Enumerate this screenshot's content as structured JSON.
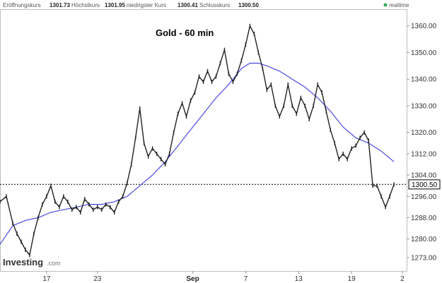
{
  "header": {
    "open_label": "Eröffnungskurs",
    "open_value": "1301.73",
    "high_label": "Höchstkurs",
    "high_value": "1301.95",
    "low_label": "niedrigster Kurs",
    "low_value": "1300.41",
    "close_label": "Schlusskurs",
    "close_value": "1300.50",
    "realtime_label": "realtime",
    "realtime_color": "#3aa657"
  },
  "brand": {
    "name": "Investing",
    "suffix": ".com"
  },
  "chart_data": {
    "type": "line",
    "title": "Gold - 60 min",
    "xlabel": "",
    "ylabel": "",
    "ylim": [
      1268,
      1366
    ],
    "y_ticks": [
      {
        "value": 1360.0,
        "label": "1360.00"
      },
      {
        "value": 1350.0,
        "label": "1350.00"
      },
      {
        "value": 1340.0,
        "label": "1340.00"
      },
      {
        "value": 1330.0,
        "label": "1330.00"
      },
      {
        "value": 1320.0,
        "label": "1320.00"
      },
      {
        "value": 1312.0,
        "label": "1312.00"
      },
      {
        "value": 1304.0,
        "label": "1304.00"
      },
      {
        "value": 1296.0,
        "label": "1296.00"
      },
      {
        "value": 1288.0,
        "label": "1288.00"
      },
      {
        "value": 1280.0,
        "label": "1280.00"
      },
      {
        "value": 1273.0,
        "label": "1273.00"
      }
    ],
    "x_ticks": [
      {
        "label": "17",
        "bar": 22,
        "bold": false
      },
      {
        "label": "23",
        "bar": 46,
        "bold": false
      },
      {
        "label": "Sep",
        "bar": 91,
        "bold": true
      },
      {
        "label": "7",
        "bar": 116,
        "bold": false
      },
      {
        "label": "13",
        "bar": 141,
        "bold": false
      },
      {
        "label": "19",
        "bar": 166,
        "bold": false
      },
      {
        "label": "2",
        "bar": 190,
        "bold": false
      }
    ],
    "x_range": [
      0,
      192
    ],
    "last_price": 1300.5,
    "last_price_label": "1300.50",
    "colors": {
      "price": "#222222",
      "moving_average": "#4a4adf",
      "price_line": "#000000"
    },
    "series": [
      {
        "kind": "price",
        "x": [
          0,
          3,
          6,
          8,
          10,
          12,
          14,
          16,
          18,
          20,
          22,
          24,
          26,
          28,
          30,
          32,
          34,
          36,
          38,
          40,
          42,
          44,
          46,
          48,
          50,
          52,
          54,
          56,
          58,
          60,
          62,
          64,
          66,
          68,
          70,
          72,
          74,
          76,
          78,
          80,
          82,
          84,
          86,
          88,
          90,
          92,
          94,
          96,
          98,
          100,
          102,
          104,
          106,
          108,
          110,
          112,
          114,
          116,
          118,
          120,
          122,
          124,
          126,
          128,
          130,
          132,
          134,
          136,
          138,
          140,
          142,
          144,
          146,
          148,
          150,
          152,
          154,
          156,
          158,
          160,
          162,
          164,
          166,
          168,
          170,
          172,
          174,
          176,
          178,
          180,
          182,
          184,
          186
        ],
        "values": [
          1294,
          1296,
          1286,
          1282,
          1279,
          1276,
          1274,
          1282,
          1288,
          1293,
          1296,
          1300,
          1294,
          1292,
          1296,
          1294,
          1291,
          1292,
          1290,
          1295,
          1293,
          1291,
          1292,
          1291,
          1293,
          1292,
          1290,
          1294,
          1296,
          1301,
          1308,
          1318,
          1329,
          1316,
          1311,
          1314,
          1312,
          1310,
          1308,
          1312,
          1320,
          1327,
          1331,
          1326,
          1332,
          1335,
          1341,
          1339,
          1343,
          1339,
          1341,
          1346,
          1351,
          1342,
          1339,
          1342,
          1347,
          1353,
          1360,
          1357,
          1350,
          1344,
          1336,
          1338,
          1330,
          1326,
          1330,
          1338,
          1330,
          1327,
          1333,
          1330,
          1325,
          1330,
          1338,
          1335,
          1328,
          1321,
          1316,
          1310,
          1312,
          1310,
          1314,
          1315,
          1318,
          1320,
          1317,
          1300,
          1300,
          1296,
          1292,
          1296,
          1300.5
        ]
      },
      {
        "kind": "moving_average",
        "x": [
          0,
          6,
          12,
          18,
          24,
          30,
          36,
          42,
          48,
          54,
          60,
          66,
          72,
          78,
          84,
          90,
          96,
          102,
          108,
          114,
          118,
          122,
          126,
          132,
          138,
          144,
          150,
          156,
          162,
          168,
          174,
          180,
          186
        ],
        "values": [
          1278,
          1285,
          1287,
          1288,
          1290,
          1291,
          1292,
          1293,
          1293,
          1294,
          1296,
          1300,
          1304,
          1309,
          1315,
          1321,
          1327,
          1333,
          1338,
          1344,
          1346,
          1346,
          1345,
          1343,
          1340,
          1337,
          1333,
          1328,
          1322,
          1318,
          1316,
          1313,
          1309
        ]
      }
    ]
  }
}
